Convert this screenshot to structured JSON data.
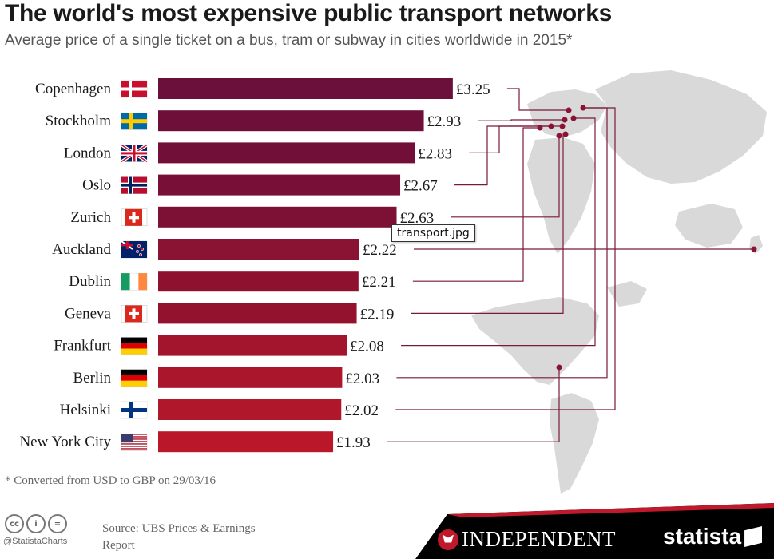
{
  "title": "The world's most expensive public transport networks",
  "subtitle": "Average price of a single ticket on a bus, tram or subway in cities worldwide in 2015*",
  "footnote": "* Converted from USD to GBP on 29/03/16",
  "tooltip": "transport.jpg",
  "footer": {
    "handle": "@StatistaCharts",
    "source": "Source: UBS Prices & Earnings Report",
    "independent": "INDEPENDENT",
    "statista": "statista",
    "icons": [
      "cc-icon",
      "by-icon",
      "nd-icon"
    ]
  },
  "chart_data": {
    "type": "bar",
    "orientation": "horizontal",
    "title": "The world's most expensive public transport networks",
    "subtitle": "Average price of a single ticket on a bus, tram or subway in cities worldwide in 2015*",
    "categories": [
      "Copenhagen",
      "Stockholm",
      "London",
      "Oslo",
      "Zurich",
      "Auckland",
      "Dublin",
      "Geneva",
      "Frankfurt",
      "Berlin",
      "Helsinki",
      "New York City"
    ],
    "values": [
      3.25,
      2.93,
      2.83,
      2.67,
      2.63,
      2.22,
      2.21,
      2.19,
      2.08,
      2.03,
      2.02,
      1.93
    ],
    "value_labels": [
      "£3.25",
      "£2.93",
      "£2.83",
      "£2.67",
      "£2.63",
      "£2.22",
      "£2.21",
      "£2.19",
      "£2.08",
      "£2.03",
      "£2.02",
      "£1.93"
    ],
    "flags": [
      "denmark-flag-icon",
      "sweden-flag-icon",
      "uk-flag-icon",
      "norway-flag-icon",
      "switzerland-flag-icon",
      "new-zealand-flag-icon",
      "ireland-flag-icon",
      "switzerland-flag-icon",
      "germany-flag-icon",
      "germany-flag-icon",
      "finland-flag-icon",
      "usa-flag-icon"
    ],
    "bar_colors": [
      "#6b0f3b",
      "#6e0f3a",
      "#720f39",
      "#770f37",
      "#7c1035",
      "#8a1232",
      "#8e1230",
      "#93132f",
      "#a3152d",
      "#aa162c",
      "#b0172b",
      "#ba182a"
    ],
    "accent_color": "#7a1a3a",
    "map_color": "#d9d9d9",
    "xlim": [
      0,
      3.6
    ],
    "grid": false,
    "legend": "none"
  }
}
